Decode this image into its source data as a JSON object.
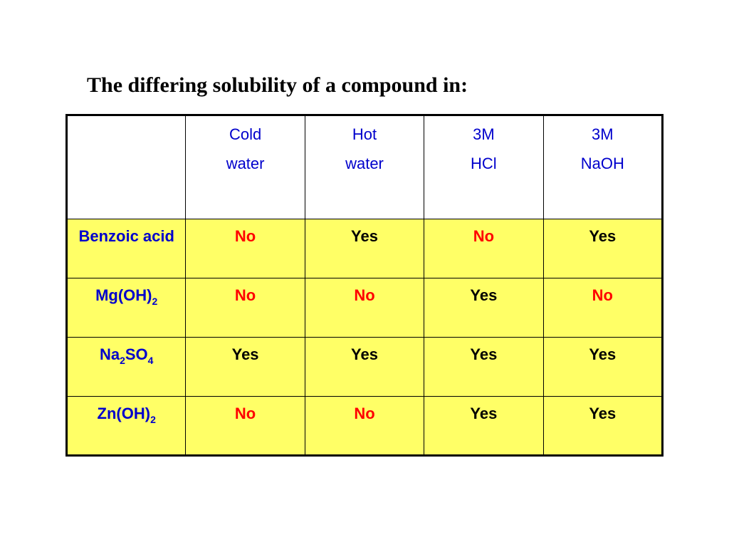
{
  "title": "The differing solubility of a compound in:",
  "colors": {
    "header_text": "#0000cc",
    "row_fill": "#ffff66",
    "no_text": "#ff0000",
    "yes_text": "#000000"
  },
  "columns": [
    {
      "line1": "Cold",
      "line2": "water"
    },
    {
      "line1": "Hot",
      "line2": "water"
    },
    {
      "line1": "3M",
      "line2": "HCl"
    },
    {
      "line1": "3M",
      "line2": "NaOH"
    }
  ],
  "rows": [
    {
      "compound": {
        "parts": [
          {
            "t": "Benzoic acid"
          }
        ]
      },
      "values": [
        "No",
        "Yes",
        "No",
        "Yes"
      ]
    },
    {
      "compound": {
        "parts": [
          {
            "t": "Mg(OH)"
          },
          {
            "sub": "2"
          }
        ]
      },
      "values": [
        "No",
        "No",
        "Yes",
        "No"
      ]
    },
    {
      "compound": {
        "parts": [
          {
            "t": "Na"
          },
          {
            "sub": "2"
          },
          {
            "t": "SO"
          },
          {
            "sub": "4"
          }
        ]
      },
      "values": [
        "Yes",
        "Yes",
        "Yes",
        "Yes"
      ]
    },
    {
      "compound": {
        "parts": [
          {
            "t": "Zn(OH)"
          },
          {
            "sub": "2"
          }
        ]
      },
      "values": [
        "No",
        "No",
        "Yes",
        "Yes"
      ]
    }
  ]
}
